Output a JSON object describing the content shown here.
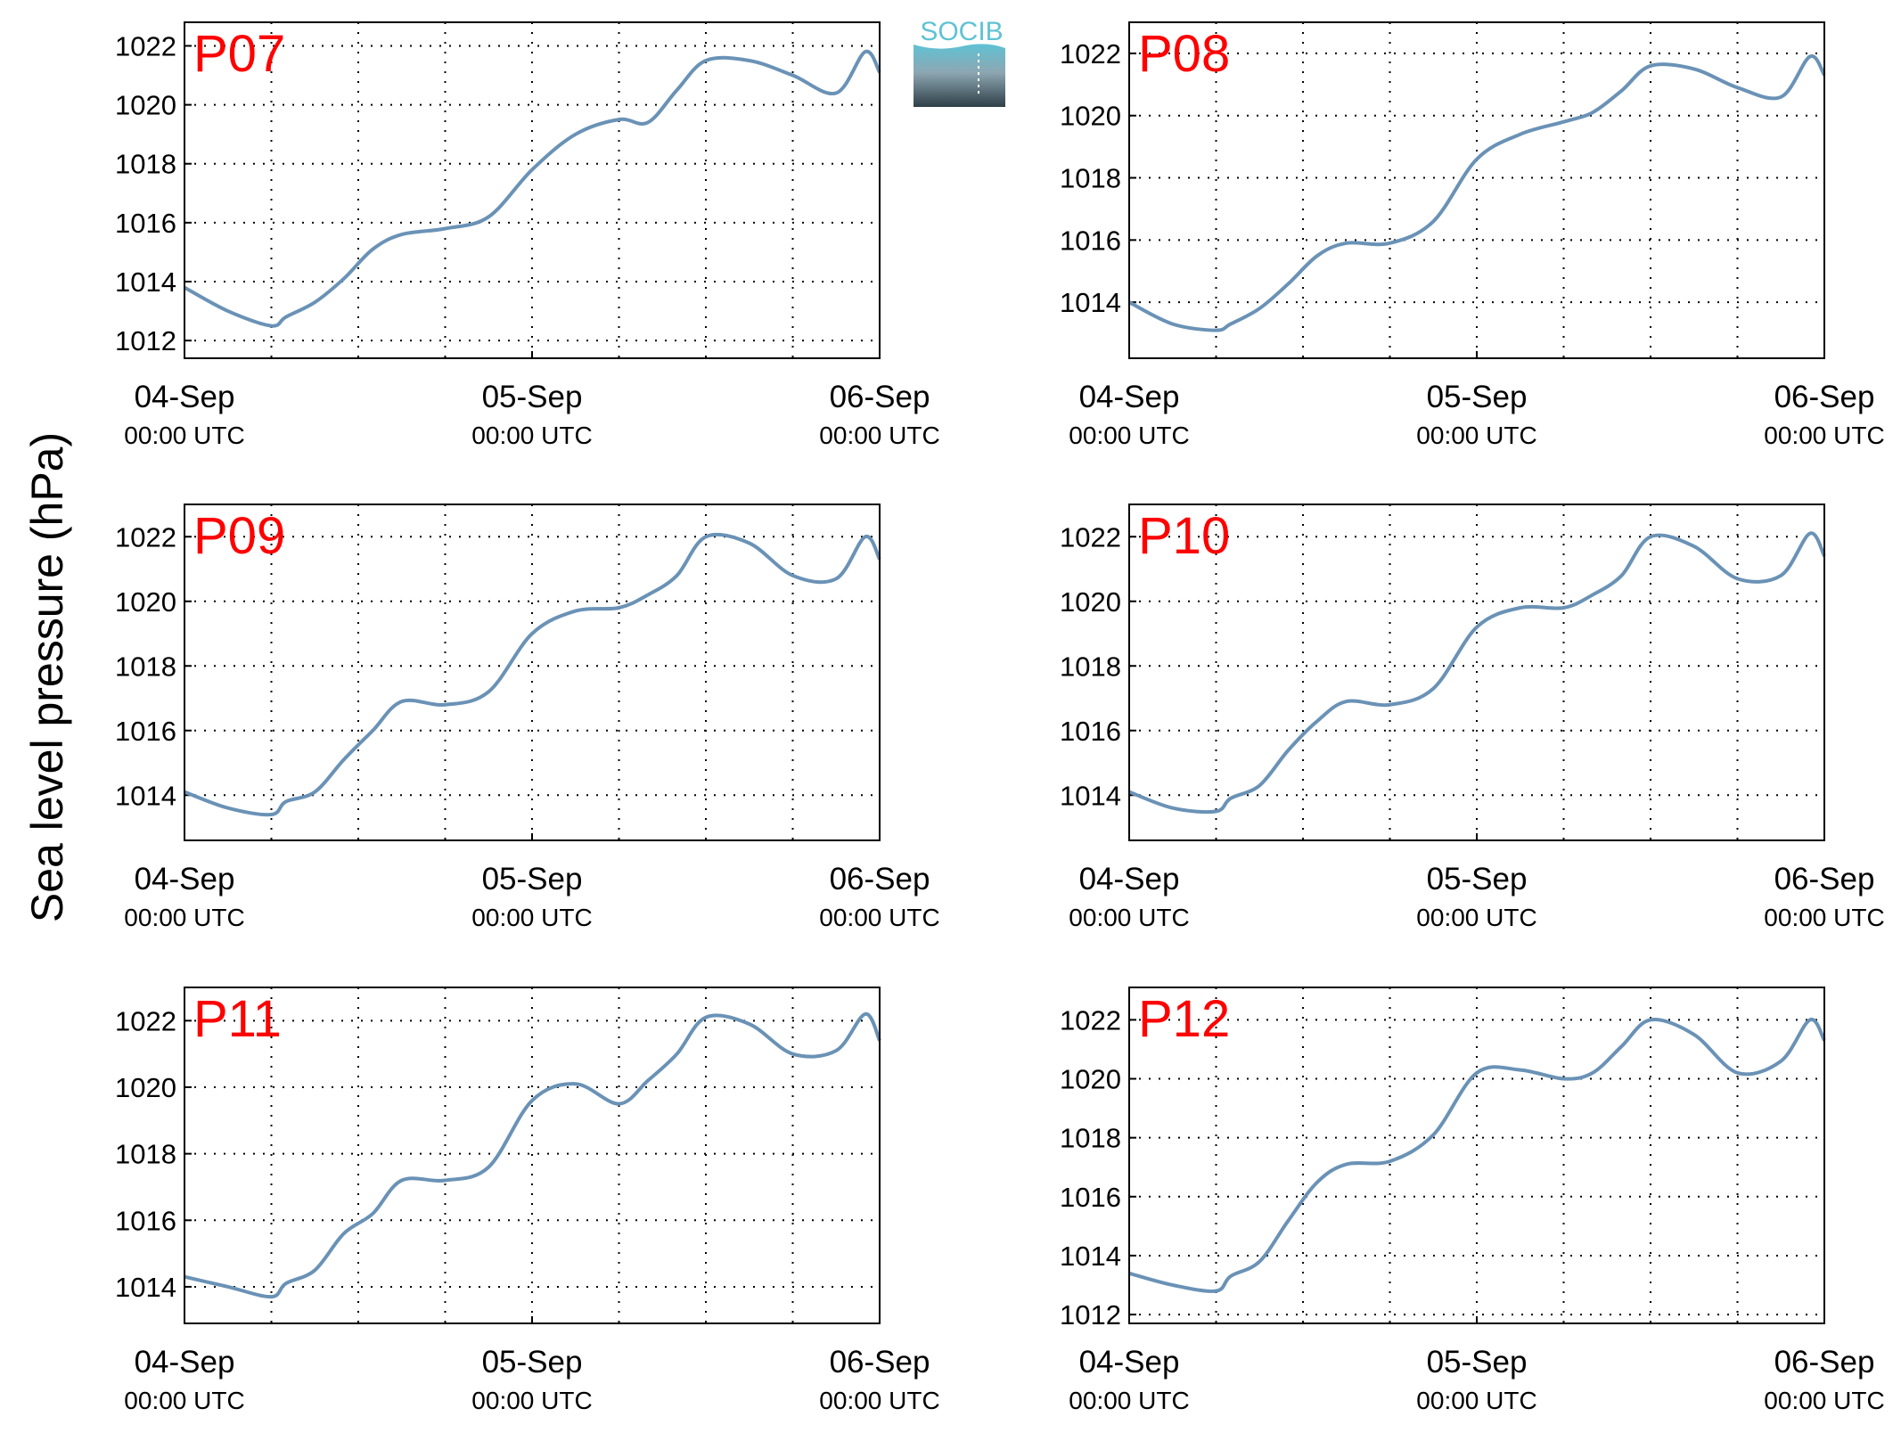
{
  "figure": {
    "ylabel": "Sea level pressure (hPa)",
    "logo_text": "SOCIB"
  },
  "colors": {
    "line": "#6a92b6",
    "panel_label": "#ff0000",
    "logo_top": "#5fc2d4",
    "logo_bottom": "#2f3f48"
  },
  "x_ticks": [
    {
      "value": 0,
      "date": "04-Sep",
      "time": "00:00 UTC"
    },
    {
      "value": 1,
      "date": "05-Sep",
      "time": "00:00 UTC"
    },
    {
      "value": 2,
      "date": "06-Sep",
      "time": "00:00 UTC"
    }
  ],
  "chart_data": [
    {
      "type": "line",
      "title": "P07",
      "xlim": [
        "2020-09-04 00:00 UTC",
        "2020-09-06 00:00 UTC"
      ],
      "ylim": [
        1011.4,
        1022.8
      ],
      "yticks": [
        1012,
        1014,
        1016,
        1018,
        1020,
        1022
      ],
      "grid": true,
      "x": [
        "2020-09-04 00:00 UTC",
        "2020-09-04 03:00 UTC",
        "2020-09-04 06:00 UTC",
        "2020-09-04 07:00 UTC",
        "2020-09-04 09:00 UTC",
        "2020-09-04 11:00 UTC",
        "2020-09-04 13:00 UTC",
        "2020-09-04 15:00 UTC",
        "2020-09-04 18:00 UTC",
        "2020-09-04 21:00 UTC",
        "2020-09-05 00:00 UTC",
        "2020-09-05 03:00 UTC",
        "2020-09-05 06:00 UTC",
        "2020-09-05 08:00 UTC",
        "2020-09-05 10:00 UTC",
        "2020-09-05 12:00 UTC",
        "2020-09-05 15:00 UTC",
        "2020-09-05 18:00 UTC",
        "2020-09-05 21:00 UTC",
        "2020-09-05 23:00 UTC",
        "2020-09-06 00:00 UTC"
      ],
      "y": [
        1013.8,
        1013.0,
        1012.5,
        1012.8,
        1013.3,
        1014.1,
        1015.1,
        1015.6,
        1015.8,
        1016.2,
        1017.8,
        1019.0,
        1019.5,
        1019.4,
        1020.5,
        1021.5,
        1021.5,
        1021.0,
        1020.4,
        1021.8,
        1021.1
      ]
    },
    {
      "type": "line",
      "title": "P08",
      "xlim": [
        "2020-09-04 00:00 UTC",
        "2020-09-06 00:00 UTC"
      ],
      "ylim": [
        1012.2,
        1023.0
      ],
      "yticks": [
        1014,
        1016,
        1018,
        1020,
        1022
      ],
      "grid": true,
      "x": [
        "2020-09-04 00:00 UTC",
        "2020-09-04 03:00 UTC",
        "2020-09-04 06:00 UTC",
        "2020-09-04 07:00 UTC",
        "2020-09-04 09:00 UTC",
        "2020-09-04 11:00 UTC",
        "2020-09-04 13:00 UTC",
        "2020-09-04 15:00 UTC",
        "2020-09-04 18:00 UTC",
        "2020-09-04 21:00 UTC",
        "2020-09-05 00:00 UTC",
        "2020-09-05 03:00 UTC",
        "2020-09-05 06:00 UTC",
        "2020-09-05 08:00 UTC",
        "2020-09-05 10:00 UTC",
        "2020-09-05 12:00 UTC",
        "2020-09-05 15:00 UTC",
        "2020-09-05 18:00 UTC",
        "2020-09-05 21:00 UTC",
        "2020-09-05 23:00 UTC",
        "2020-09-06 00:00 UTC"
      ],
      "y": [
        1014.0,
        1013.3,
        1013.1,
        1013.3,
        1013.8,
        1014.6,
        1015.5,
        1015.9,
        1015.9,
        1016.6,
        1018.6,
        1019.4,
        1019.8,
        1020.1,
        1020.8,
        1021.6,
        1021.5,
        1020.9,
        1020.6,
        1021.9,
        1021.3
      ]
    },
    {
      "type": "line",
      "title": "P09",
      "xlim": [
        "2020-09-04 00:00 UTC",
        "2020-09-06 00:00 UTC"
      ],
      "ylim": [
        1012.6,
        1023.0
      ],
      "yticks": [
        1014,
        1016,
        1018,
        1020,
        1022
      ],
      "grid": true,
      "x": [
        "2020-09-04 00:00 UTC",
        "2020-09-04 03:00 UTC",
        "2020-09-04 06:00 UTC",
        "2020-09-04 07:00 UTC",
        "2020-09-04 09:00 UTC",
        "2020-09-04 11:00 UTC",
        "2020-09-04 13:00 UTC",
        "2020-09-04 15:00 UTC",
        "2020-09-04 18:00 UTC",
        "2020-09-04 21:00 UTC",
        "2020-09-05 00:00 UTC",
        "2020-09-05 03:00 UTC",
        "2020-09-05 06:00 UTC",
        "2020-09-05 08:00 UTC",
        "2020-09-05 10:00 UTC",
        "2020-09-05 12:00 UTC",
        "2020-09-05 15:00 UTC",
        "2020-09-05 18:00 UTC",
        "2020-09-05 21:00 UTC",
        "2020-09-05 23:00 UTC",
        "2020-09-06 00:00 UTC"
      ],
      "y": [
        1014.1,
        1013.6,
        1013.4,
        1013.8,
        1014.1,
        1015.1,
        1016.0,
        1016.9,
        1016.8,
        1017.2,
        1019.0,
        1019.7,
        1019.8,
        1020.2,
        1020.8,
        1022.0,
        1021.8,
        1020.8,
        1020.7,
        1022.0,
        1021.3
      ]
    },
    {
      "type": "line",
      "title": "P10",
      "xlim": [
        "2020-09-04 00:00 UTC",
        "2020-09-06 00:00 UTC"
      ],
      "ylim": [
        1012.6,
        1023.0
      ],
      "yticks": [
        1014,
        1016,
        1018,
        1020,
        1022
      ],
      "grid": true,
      "x": [
        "2020-09-04 00:00 UTC",
        "2020-09-04 03:00 UTC",
        "2020-09-04 06:00 UTC",
        "2020-09-04 07:00 UTC",
        "2020-09-04 09:00 UTC",
        "2020-09-04 11:00 UTC",
        "2020-09-04 13:00 UTC",
        "2020-09-04 15:00 UTC",
        "2020-09-04 18:00 UTC",
        "2020-09-04 21:00 UTC",
        "2020-09-05 00:00 UTC",
        "2020-09-05 03:00 UTC",
        "2020-09-05 06:00 UTC",
        "2020-09-05 08:00 UTC",
        "2020-09-05 10:00 UTC",
        "2020-09-05 12:00 UTC",
        "2020-09-05 15:00 UTC",
        "2020-09-05 18:00 UTC",
        "2020-09-05 21:00 UTC",
        "2020-09-05 23:00 UTC",
        "2020-09-06 00:00 UTC"
      ],
      "y": [
        1014.1,
        1013.6,
        1013.5,
        1013.9,
        1014.3,
        1015.4,
        1016.3,
        1016.9,
        1016.8,
        1017.3,
        1019.2,
        1019.8,
        1019.8,
        1020.2,
        1020.8,
        1022.0,
        1021.7,
        1020.7,
        1020.8,
        1022.1,
        1021.4
      ]
    },
    {
      "type": "line",
      "title": "P11",
      "xlim": [
        "2020-09-04 00:00 UTC",
        "2020-09-06 00:00 UTC"
      ],
      "ylim": [
        1012.9,
        1023.0
      ],
      "yticks": [
        1014,
        1016,
        1018,
        1020,
        1022
      ],
      "grid": true,
      "x": [
        "2020-09-04 00:00 UTC",
        "2020-09-04 03:00 UTC",
        "2020-09-04 06:00 UTC",
        "2020-09-04 07:00 UTC",
        "2020-09-04 09:00 UTC",
        "2020-09-04 11:00 UTC",
        "2020-09-04 13:00 UTC",
        "2020-09-04 15:00 UTC",
        "2020-09-04 18:00 UTC",
        "2020-09-04 21:00 UTC",
        "2020-09-05 00:00 UTC",
        "2020-09-05 03:00 UTC",
        "2020-09-05 06:00 UTC",
        "2020-09-05 08:00 UTC",
        "2020-09-05 10:00 UTC",
        "2020-09-05 12:00 UTC",
        "2020-09-05 15:00 UTC",
        "2020-09-05 18:00 UTC",
        "2020-09-05 21:00 UTC",
        "2020-09-05 23:00 UTC",
        "2020-09-06 00:00 UTC"
      ],
      "y": [
        1014.3,
        1014.0,
        1013.7,
        1014.1,
        1014.5,
        1015.6,
        1016.2,
        1017.2,
        1017.2,
        1017.6,
        1019.6,
        1020.1,
        1019.5,
        1020.2,
        1021.0,
        1022.1,
        1021.9,
        1021.0,
        1021.1,
        1022.2,
        1021.4
      ]
    },
    {
      "type": "line",
      "title": "P12",
      "xlim": [
        "2020-09-04 00:00 UTC",
        "2020-09-06 00:00 UTC"
      ],
      "ylim": [
        1011.7,
        1023.1
      ],
      "yticks": [
        1012,
        1014,
        1016,
        1018,
        1020,
        1022
      ],
      "grid": true,
      "x": [
        "2020-09-04 00:00 UTC",
        "2020-09-04 03:00 UTC",
        "2020-09-04 06:00 UTC",
        "2020-09-04 07:00 UTC",
        "2020-09-04 09:00 UTC",
        "2020-09-04 11:00 UTC",
        "2020-09-04 13:00 UTC",
        "2020-09-04 15:00 UTC",
        "2020-09-04 18:00 UTC",
        "2020-09-04 21:00 UTC",
        "2020-09-05 00:00 UTC",
        "2020-09-05 03:00 UTC",
        "2020-09-05 06:00 UTC",
        "2020-09-05 08:00 UTC",
        "2020-09-05 10:00 UTC",
        "2020-09-05 12:00 UTC",
        "2020-09-05 15:00 UTC",
        "2020-09-05 18:00 UTC",
        "2020-09-05 21:00 UTC",
        "2020-09-05 23:00 UTC",
        "2020-09-06 00:00 UTC"
      ],
      "y": [
        1013.4,
        1013.0,
        1012.8,
        1013.3,
        1013.8,
        1015.2,
        1016.5,
        1017.1,
        1017.2,
        1018.1,
        1020.2,
        1020.3,
        1020.0,
        1020.2,
        1021.1,
        1022.0,
        1021.5,
        1020.2,
        1020.6,
        1022.0,
        1021.3
      ]
    }
  ]
}
